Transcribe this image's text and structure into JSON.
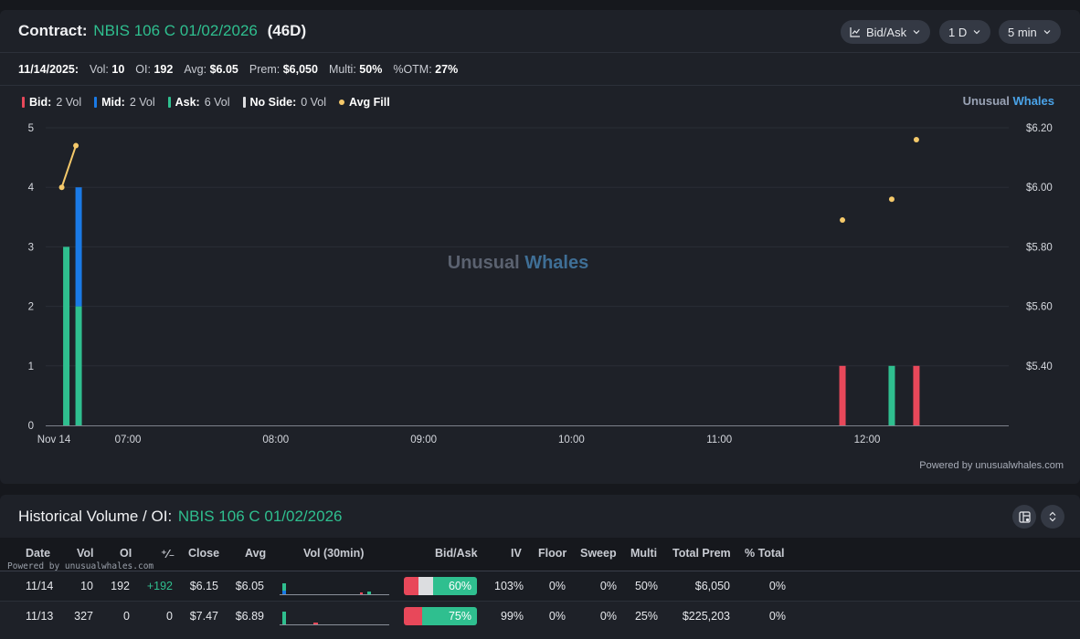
{
  "contract": {
    "label": "Contract:",
    "name": "NBIS 106 C 01/02/2026",
    "days": "(46D)"
  },
  "controls": {
    "chart_mode": "Bid/Ask",
    "range": "1 D",
    "interval": "5 min"
  },
  "stats": {
    "date": "11/14/2025:",
    "vol_label": "Vol:",
    "vol": "10",
    "oi_label": "OI:",
    "oi": "192",
    "avg_label": "Avg:",
    "avg": "$6.05",
    "prem_label": "Prem:",
    "prem": "$6,050",
    "multi_label": "Multi:",
    "multi": "50%",
    "otm_label": "%OTM:",
    "otm": "27%"
  },
  "legend": [
    {
      "label": "Bid:",
      "value": "2 Vol",
      "color": "#e8485a"
    },
    {
      "label": "Mid:",
      "value": "2 Vol",
      "color": "#1a7ae6"
    },
    {
      "label": "Ask:",
      "value": "6 Vol",
      "color": "#2fbf8f"
    },
    {
      "label": "No Side:",
      "value": "0 Vol",
      "color": "#dcdde0"
    },
    {
      "label": "Avg Fill",
      "value": "",
      "color": "#f5c96a"
    }
  ],
  "brand": {
    "part1": "Unusual",
    "part2": "Whales"
  },
  "watermark": {
    "part1": "Unusual",
    "part2": "Whales"
  },
  "chart_data": {
    "type": "bar",
    "x_start_label": "Nov 14",
    "x_ticks": [
      "07:00",
      "08:00",
      "09:00",
      "10:00",
      "11:00",
      "12:00"
    ],
    "y_left": {
      "ticks": [
        "0",
        "1",
        "2",
        "3",
        "4",
        "5"
      ],
      "range": [
        0,
        5
      ]
    },
    "y_right": {
      "ticks": [
        "$5.40",
        "$5.60",
        "$5.80",
        "$6.00",
        "$6.20"
      ],
      "range": [
        5.2,
        6.2
      ]
    },
    "bars": [
      {
        "time": "06:35",
        "ask": 3,
        "mid": 0,
        "bid": 0
      },
      {
        "time": "06:40",
        "ask": 2,
        "mid": 2,
        "bid": 0
      },
      {
        "time": "11:50",
        "ask": 0,
        "mid": 0,
        "bid": 1
      },
      {
        "time": "12:10",
        "ask": 1,
        "mid": 0,
        "bid": 0
      },
      {
        "time": "12:20",
        "ask": 0,
        "mid": 0,
        "bid": 1
      }
    ],
    "avg_fill": [
      {
        "time": "06:35",
        "price": 6.0
      },
      {
        "time": "06:40",
        "price": 6.14
      },
      {
        "time": "11:50",
        "price": 5.89
      },
      {
        "time": "12:10",
        "price": 5.96
      },
      {
        "time": "12:20",
        "price": 6.16
      }
    ],
    "colors": {
      "bid": "#e8485a",
      "mid": "#1a7ae6",
      "ask": "#2fbf8f",
      "fill": "#f5c96a"
    }
  },
  "powered_by": "Powered by unusualwhales.com",
  "historical": {
    "title": "Historical Volume / OI:",
    "name": "NBIS 106 C 01/02/2026",
    "powered_small": "Powered by unusualwhales.com",
    "headers": {
      "date": "Date",
      "vol": "Vol",
      "oi": "OI",
      "delta": "⁺⁄₋",
      "close": "Close",
      "avg": "Avg",
      "vol30": "Vol (30min)",
      "bidask": "Bid/Ask",
      "iv": "IV",
      "floor": "Floor",
      "sweep": "Sweep",
      "multi": "Multi",
      "total_prem": "Total Prem",
      "pct_total": "% Total"
    },
    "rows": [
      {
        "date": "11/14",
        "vol": "10",
        "oi": "192",
        "delta": "+192",
        "close": "$6.15",
        "avg": "$6.05",
        "bid_pct": 0.2,
        "mid_pct": 0.2,
        "ask_pct": 0.6,
        "ask_label": "60%",
        "iv": "103%",
        "floor": "0%",
        "sweep": "0%",
        "multi": "50%",
        "total_prem": "$6,050",
        "pct_total": "0%"
      },
      {
        "date": "11/13",
        "vol": "327",
        "oi": "0",
        "delta": "0",
        "close": "$7.47",
        "avg": "$6.89",
        "bid_pct": 0.25,
        "mid_pct": 0.0,
        "ask_pct": 0.75,
        "ask_label": "75%",
        "iv": "99%",
        "floor": "0%",
        "sweep": "0%",
        "multi": "25%",
        "total_prem": "$225,203",
        "pct_total": "0%"
      }
    ]
  }
}
